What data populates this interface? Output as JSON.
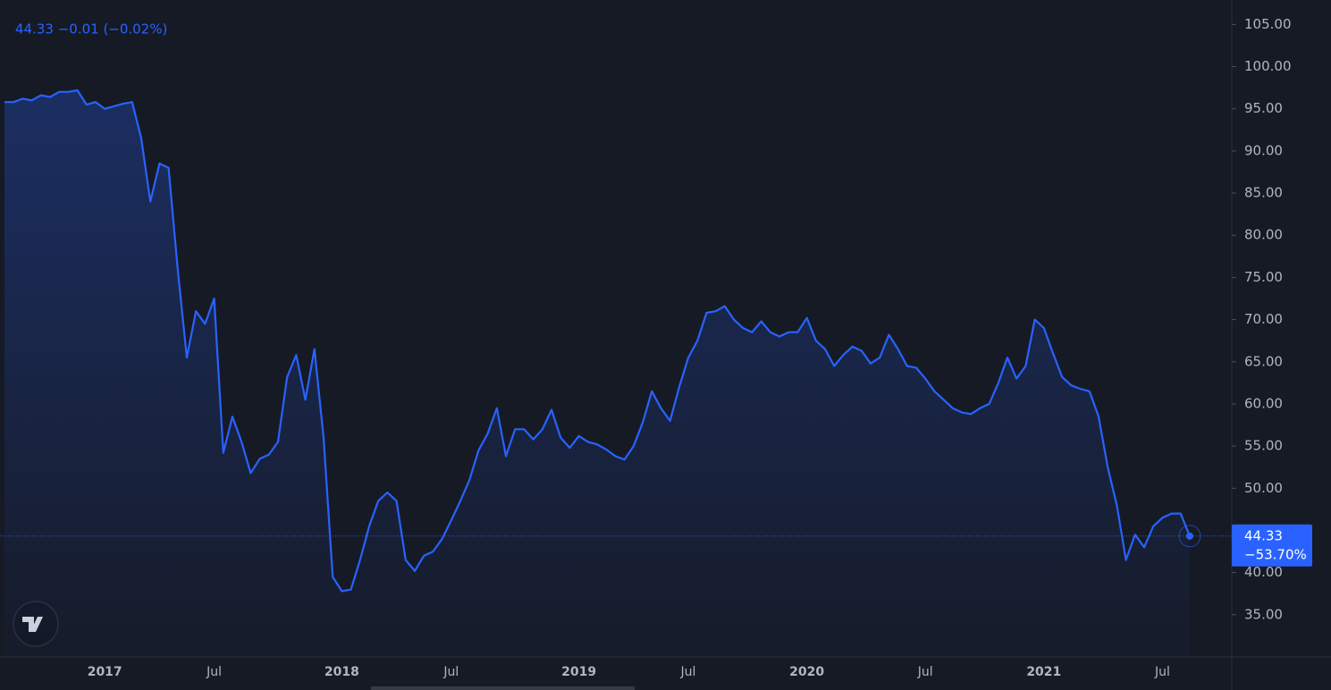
{
  "chart_data": {
    "type": "area",
    "legend_text": "44.33 −0.01 (−0.02%)",
    "last_change": "−53.70%",
    "color": "#2962ff",
    "ylim": [
      30,
      107.9
    ],
    "yticks": [
      {
        "value": 35,
        "label": "35.00"
      },
      {
        "value": 40,
        "label": "40.00"
      },
      {
        "value": 45,
        "label": "45.00"
      },
      {
        "value": 50,
        "label": "50.00"
      },
      {
        "value": 55,
        "label": "55.00"
      },
      {
        "value": 60,
        "label": "60.00"
      },
      {
        "value": 65,
        "label": "65.00"
      },
      {
        "value": 70,
        "label": "70.00"
      },
      {
        "value": 75,
        "label": "75.00"
      },
      {
        "value": 80,
        "label": "80.00"
      },
      {
        "value": 85,
        "label": "85.00"
      },
      {
        "value": 90,
        "label": "90.00"
      },
      {
        "value": 95,
        "label": "95.00"
      },
      {
        "value": 100,
        "label": "100.00"
      },
      {
        "value": 105,
        "label": "105.00"
      }
    ],
    "categories": [
      null,
      null,
      null,
      null,
      null,
      null,
      null,
      null,
      null,
      null,
      null,
      "2017",
      null,
      null,
      null,
      null,
      null,
      null,
      null,
      null,
      null,
      null,
      null,
      "Jul",
      null,
      null,
      null,
      null,
      null,
      null,
      null,
      null,
      null,
      null,
      null,
      null,
      null,
      "2018",
      null,
      null,
      null,
      null,
      null,
      null,
      null,
      null,
      null,
      null,
      null,
      "Jul",
      null,
      null,
      null,
      null,
      null,
      null,
      null,
      null,
      null,
      null,
      null,
      null,
      null,
      "2019",
      null,
      null,
      null,
      null,
      null,
      null,
      null,
      null,
      null,
      null,
      null,
      "Jul",
      null,
      null,
      null,
      null,
      null,
      null,
      null,
      null,
      null,
      null,
      null,
      null,
      "2020",
      null,
      null,
      null,
      null,
      null,
      null,
      null,
      null,
      null,
      null,
      null,
      null,
      "Jul",
      null,
      null,
      null,
      null,
      null,
      null,
      null,
      null,
      null,
      null,
      null,
      null,
      "2021",
      null,
      null,
      null,
      null,
      null,
      null,
      null,
      null,
      null,
      null,
      null,
      null,
      "Jul",
      null,
      null,
      null
    ],
    "values": [
      95.8,
      95.8,
      96.2,
      96.0,
      96.6,
      96.4,
      97.0,
      97.0,
      97.2,
      95.5,
      95.8,
      95.0,
      95.3,
      95.6,
      95.8,
      91.5,
      84.0,
      88.5,
      88.0,
      76.0,
      65.5,
      71.0,
      69.5,
      72.5,
      54.2,
      58.5,
      55.5,
      51.8,
      53.5,
      54.0,
      55.5,
      63.2,
      65.8,
      60.5,
      66.5,
      56.0,
      39.5,
      37.8,
      38.0,
      41.5,
      45.5,
      48.5,
      49.5,
      48.5,
      41.5,
      40.2,
      42.0,
      42.5,
      44.0,
      46.2,
      48.5,
      51.0,
      54.5,
      56.5,
      59.5,
      53.8,
      57.0,
      57.0,
      55.8,
      57.0,
      59.3,
      56.0,
      54.8,
      56.2,
      55.5,
      55.2,
      54.6,
      53.8,
      53.4,
      55.0,
      57.8,
      61.5,
      59.5,
      58.0,
      62.0,
      65.5,
      67.5,
      70.8,
      71.0,
      71.6,
      70.0,
      69.0,
      68.5,
      69.8,
      68.5,
      68.0,
      68.5,
      68.5,
      70.2,
      67.5,
      66.5,
      64.5,
      65.8,
      66.8,
      66.3,
      64.8,
      65.5,
      68.2,
      66.5,
      64.5,
      64.3,
      63.0,
      61.5,
      60.5,
      59.5,
      59.0,
      58.8,
      59.5,
      60.0,
      62.5,
      65.5,
      63.0,
      64.5,
      70.0,
      69.0,
      66.0,
      63.2,
      62.2,
      61.8,
      61.5,
      58.5,
      52.5,
      48.0,
      41.5,
      44.5,
      43.0,
      45.5,
      46.5,
      47.0,
      47.0,
      44.33
    ]
  }
}
